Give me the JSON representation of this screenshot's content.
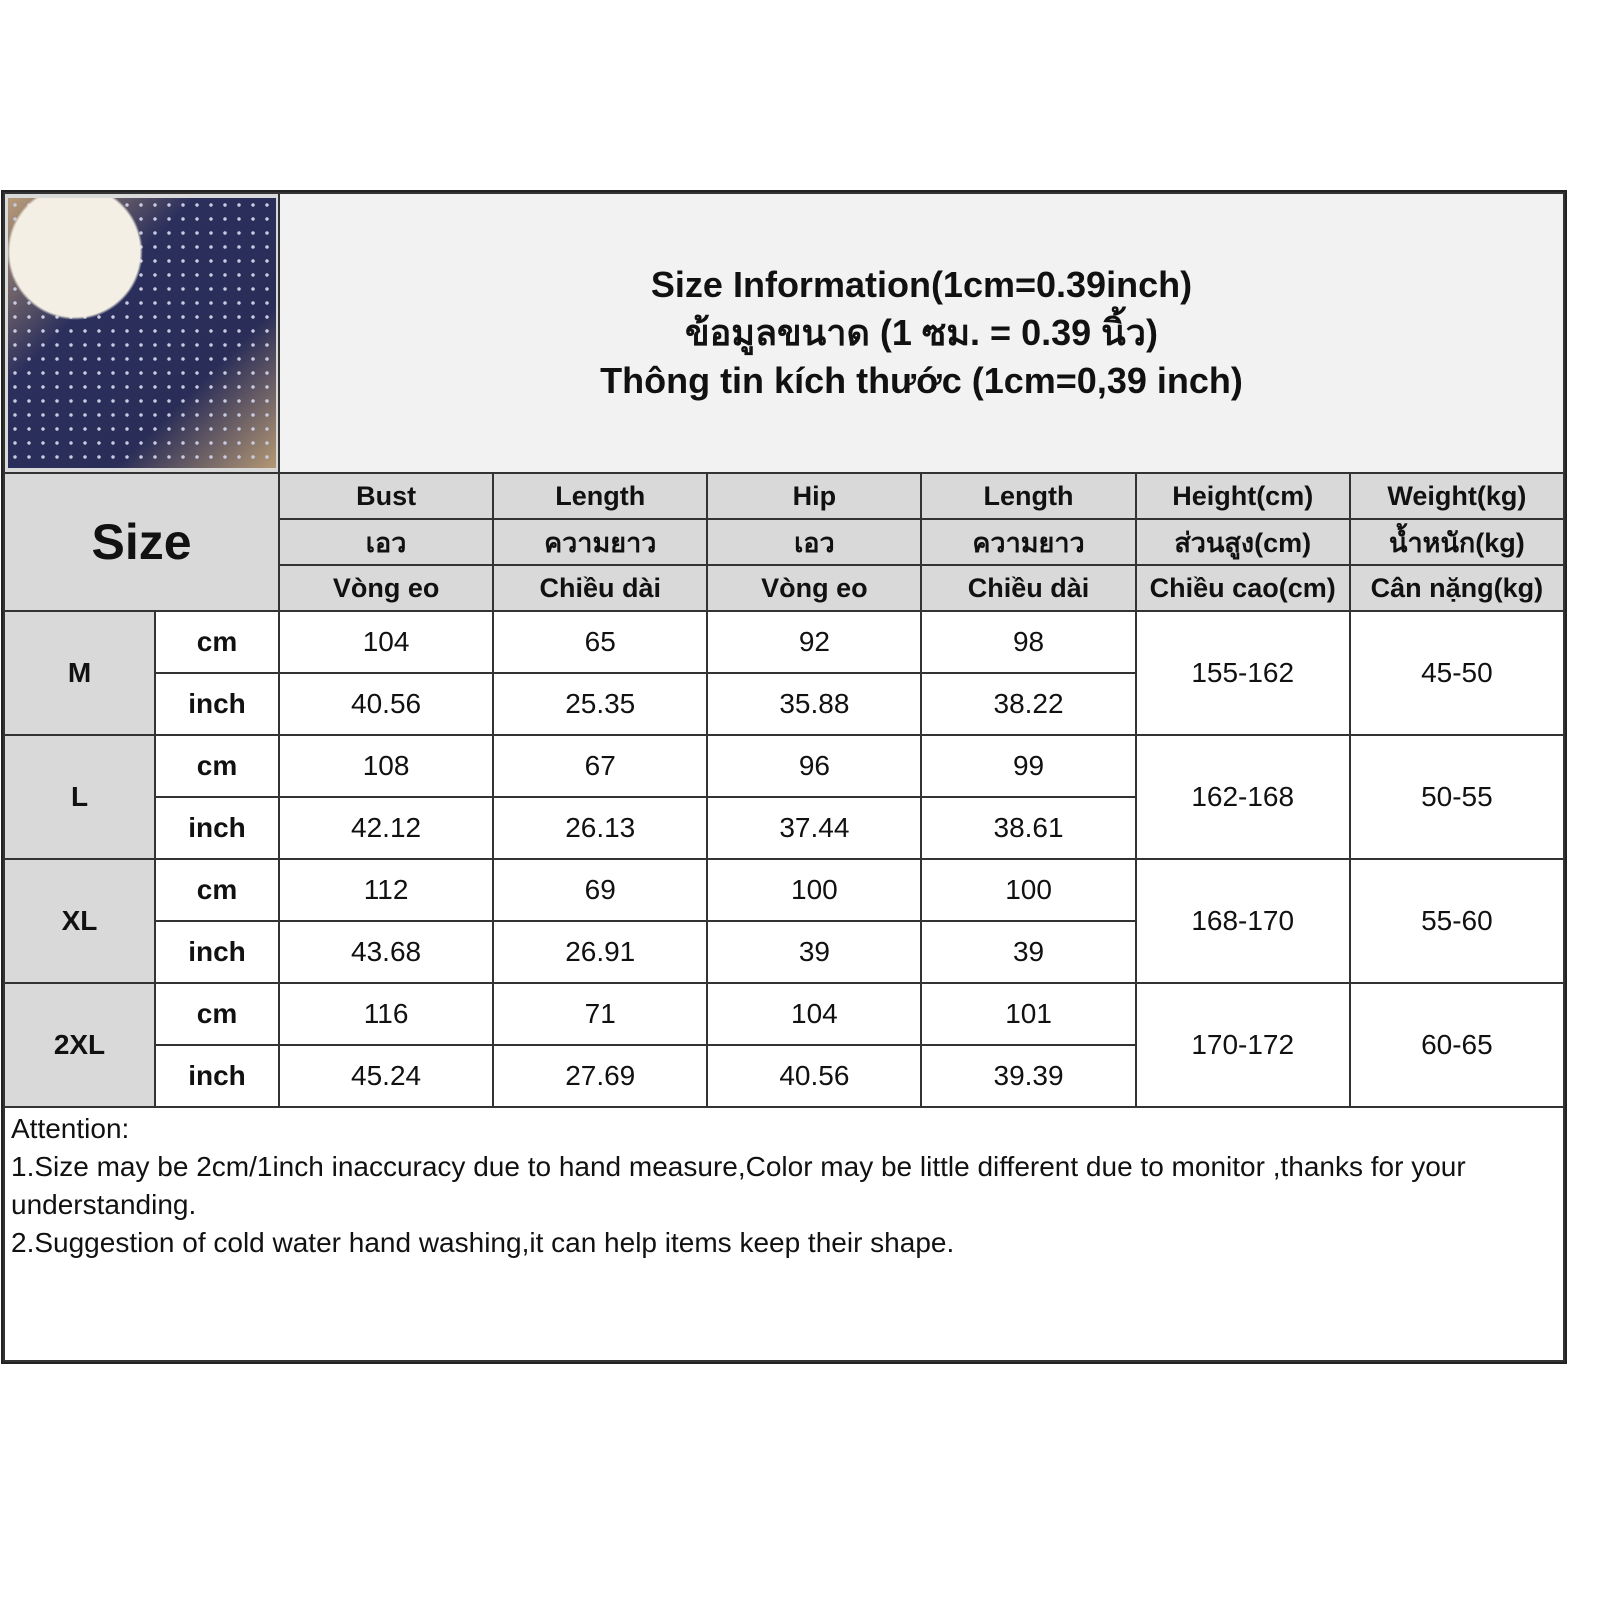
{
  "title": [
    "Size Information(1cm=0.39inch)",
    "ข้อมูลขนาด (1 ซม. = 0.39 นิ้ว)",
    "Thông tin kích thước (1cm=0,39 inch)"
  ],
  "size_label": "Size",
  "columns": [
    {
      "en": "Bust",
      "th": "เอว",
      "vi": "Vòng eo"
    },
    {
      "en": "Length",
      "th": "ความยาว",
      "vi": "Chiều dài"
    },
    {
      "en": "Hip",
      "th": "เอว",
      "vi": "Vòng eo"
    },
    {
      "en": "Length",
      "th": "ความยาว",
      "vi": "Chiều dài"
    },
    {
      "en": "Height(cm)",
      "th": "ส่วนสูง(cm)",
      "vi": "Chiều cao(cm)"
    },
    {
      "en": "Weight(kg)",
      "th": "น้ำหนัก(kg)",
      "vi": "Cân nặng(kg)"
    }
  ],
  "rows": [
    {
      "size": "M",
      "cm_label": "cm",
      "inch_label": "inch",
      "cm": [
        "104",
        "65",
        "92",
        "98"
      ],
      "inch": [
        "40.56",
        "25.35",
        "35.88",
        "38.22"
      ],
      "height": "155-162",
      "weight": "45-50"
    },
    {
      "size": "L",
      "cm_label": "cm",
      "inch_label": "inch",
      "cm": [
        "108",
        "67",
        "96",
        "99"
      ],
      "inch": [
        "42.12",
        "26.13",
        "37.44",
        "38.61"
      ],
      "height": "162-168",
      "weight": "50-55"
    },
    {
      "size": "XL",
      "cm_label": "cm",
      "inch_label": "inch",
      "cm": [
        "112",
        "69",
        "100",
        "100"
      ],
      "inch": [
        "43.68",
        "26.91",
        "39",
        "39"
      ],
      "height": "168-170",
      "weight": "55-60"
    },
    {
      "size": "2XL",
      "cm_label": "cm",
      "inch_label": "inch",
      "cm": [
        "116",
        "71",
        "104",
        "101"
      ],
      "inch": [
        "45.24",
        "27.69",
        "40.56",
        "39.39"
      ],
      "height": "170-172",
      "weight": "60-65"
    }
  ],
  "notes": [
    "Attention:",
    "1.Size may be 2cm/1inch inaccuracy due to hand measure,Color may be little different due to monitor ,thanks for your understanding.",
    "2.Suggestion of cold water hand washing,it can help items keep their shape."
  ]
}
